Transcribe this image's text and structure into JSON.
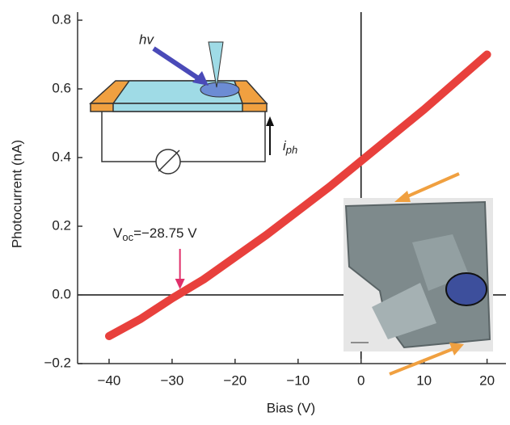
{
  "chart_data": {
    "type": "line",
    "x_label": "Bias (V)",
    "y_label": "Photocurrent (nA)",
    "x": [
      -40,
      -35,
      -30,
      -25,
      -20,
      -15,
      -10,
      -5,
      0,
      5,
      10,
      15,
      20
    ],
    "values": [
      -0.12,
      -0.07,
      -0.01,
      0.045,
      0.11,
      0.175,
      0.245,
      0.315,
      0.39,
      0.465,
      0.54,
      0.62,
      0.7
    ],
    "color": "#e8403c",
    "xlim": [
      -45,
      23
    ],
    "ylim": [
      -0.2,
      0.8
    ],
    "xticks": [
      {
        "value": -40,
        "label": "−40"
      },
      {
        "value": -30,
        "label": "−30"
      },
      {
        "value": -20,
        "label": "−20"
      },
      {
        "value": -10,
        "label": "−10"
      },
      0,
      10,
      20
    ],
    "yticks": [
      {
        "value": -0.2,
        "label": "−0.2"
      },
      {
        "value": 0,
        "label": "0.0"
      },
      0.2,
      0.4,
      0.6,
      0.8
    ],
    "grid": false,
    "annotation": {
      "symbol": "V",
      "subscript": "oc",
      "text": "=−28.75 V",
      "x": -28.75
    },
    "inset_labels": {
      "light": "hv",
      "current": "i",
      "current_subscript": "ph"
    }
  }
}
